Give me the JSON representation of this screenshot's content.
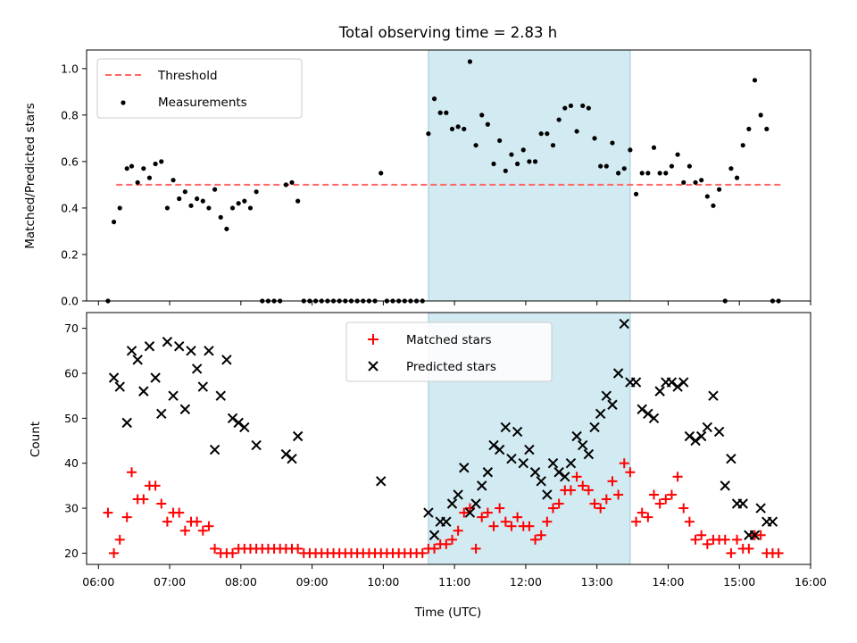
{
  "chart_data": [
    {
      "type": "scatter",
      "title": "Total observing time = 2.83 h",
      "xlabel": "",
      "ylabel": "Matched/Predicted stars",
      "ylim": [
        0,
        1.08
      ],
      "yticks": [
        "0.0",
        "0.2",
        "0.4",
        "0.6",
        "0.8",
        "1.0"
      ],
      "shaded_region": {
        "start": "10:38",
        "end": "13:28",
        "color": "#add8e6"
      },
      "legend_position": "upper-left",
      "series": [
        {
          "name": "Threshold",
          "kind": "dashed-line",
          "color": "#ff6666",
          "x": [
            "06:15",
            "15:35"
          ],
          "y": [
            0.5,
            0.5
          ]
        },
        {
          "name": "Measurements",
          "kind": "dots",
          "color": "#000000",
          "x": [
            "06:08",
            "06:13",
            "06:18",
            "06:24",
            "06:28",
            "06:33",
            "06:38",
            "06:43",
            "06:48",
            "06:53",
            "06:58",
            "07:03",
            "07:08",
            "07:13",
            "07:18",
            "07:23",
            "07:28",
            "07:33",
            "07:38",
            "07:43",
            "07:48",
            "07:53",
            "07:58",
            "08:03",
            "08:08",
            "08:13",
            "08:18",
            "08:23",
            "08:28",
            "08:33",
            "08:38",
            "08:43",
            "08:48",
            "08:53",
            "08:58",
            "09:03",
            "09:08",
            "09:13",
            "09:18",
            "09:23",
            "09:28",
            "09:33",
            "09:38",
            "09:43",
            "09:48",
            "09:53",
            "09:58",
            "10:03",
            "10:08",
            "10:13",
            "10:18",
            "10:23",
            "10:28",
            "10:33",
            "10:38",
            "10:43",
            "10:48",
            "10:53",
            "10:58",
            "11:03",
            "11:08",
            "11:13",
            "11:18",
            "11:23",
            "11:28",
            "11:33",
            "11:38",
            "11:43",
            "11:48",
            "11:53",
            "11:58",
            "12:03",
            "12:08",
            "12:13",
            "12:18",
            "12:23",
            "12:28",
            "12:33",
            "12:38",
            "12:43",
            "12:48",
            "12:53",
            "12:58",
            "13:03",
            "13:08",
            "13:13",
            "13:18",
            "13:23",
            "13:28",
            "13:33",
            "13:38",
            "13:43",
            "13:48",
            "13:53",
            "13:58",
            "14:03",
            "14:08",
            "14:13",
            "14:18",
            "14:23",
            "14:28",
            "14:33",
            "14:38",
            "14:43",
            "14:48",
            "14:53",
            "14:58",
            "15:03",
            "15:08",
            "15:13",
            "15:18",
            "15:23",
            "15:28",
            "15:33"
          ],
          "y": [
            0.0,
            0.34,
            0.4,
            0.57,
            0.58,
            0.51,
            0.57,
            0.53,
            0.59,
            0.6,
            0.4,
            0.52,
            0.44,
            0.47,
            0.41,
            0.44,
            0.43,
            0.4,
            0.48,
            0.36,
            0.31,
            0.4,
            0.42,
            0.43,
            0.4,
            0.47,
            0.0,
            0.0,
            0.0,
            0.0,
            0.5,
            0.51,
            0.43,
            0.0,
            0.0,
            0.0,
            0.0,
            0.0,
            0.0,
            0.0,
            0.0,
            0.0,
            0.0,
            0.0,
            0.0,
            0.0,
            0.55,
            0.0,
            0.0,
            0.0,
            0.0,
            0.0,
            0.0,
            0.0,
            0.72,
            0.87,
            0.81,
            0.81,
            0.74,
            0.75,
            0.74,
            1.03,
            0.67,
            0.8,
            0.76,
            0.59,
            0.69,
            0.56,
            0.63,
            0.59,
            0.65,
            0.6,
            0.6,
            0.72,
            0.72,
            0.67,
            0.78,
            0.83,
            0.84,
            0.73,
            0.84,
            0.83,
            0.7,
            0.58,
            0.58,
            0.68,
            0.55,
            0.57,
            0.65,
            0.46,
            0.55,
            0.55,
            0.66,
            0.55,
            0.55,
            0.58,
            0.63,
            0.51,
            0.58,
            0.51,
            0.52,
            0.45,
            0.41,
            0.48,
            0.0,
            0.57,
            0.53,
            0.67,
            0.74,
            0.95,
            0.8,
            0.74,
            0.0,
            0.0
          ]
        }
      ]
    },
    {
      "type": "scatter",
      "title": "",
      "xlabel": "Time (UTC)",
      "ylabel": "Count",
      "ylim": [
        17.5,
        73.5
      ],
      "yticks": [
        "20",
        "30",
        "40",
        "50",
        "60",
        "70"
      ],
      "xlim": [
        "05:50",
        "16:00"
      ],
      "xticks": [
        "06:00",
        "07:00",
        "08:00",
        "09:00",
        "10:00",
        "11:00",
        "12:00",
        "13:00",
        "14:00",
        "15:00",
        "16:00"
      ],
      "shaded_region": {
        "start": "10:38",
        "end": "13:28",
        "color": "#add8e6"
      },
      "legend_position": "upper-center",
      "series": [
        {
          "name": "Matched stars",
          "marker": "plus",
          "color": "#ff0000",
          "x": [
            "06:08",
            "06:13",
            "06:18",
            "06:24",
            "06:28",
            "06:33",
            "06:38",
            "06:43",
            "06:48",
            "06:53",
            "06:58",
            "07:03",
            "07:08",
            "07:13",
            "07:18",
            "07:23",
            "07:28",
            "07:33",
            "07:38",
            "07:43",
            "07:48",
            "07:53",
            "07:58",
            "08:03",
            "08:08",
            "08:13",
            "08:18",
            "08:23",
            "08:28",
            "08:33",
            "08:38",
            "08:43",
            "08:48",
            "08:53",
            "08:58",
            "09:03",
            "09:08",
            "09:13",
            "09:18",
            "09:23",
            "09:28",
            "09:33",
            "09:38",
            "09:43",
            "09:48",
            "09:53",
            "09:58",
            "10:03",
            "10:08",
            "10:13",
            "10:18",
            "10:23",
            "10:28",
            "10:33",
            "10:38",
            "10:43",
            "10:48",
            "10:53",
            "10:58",
            "11:03",
            "11:08",
            "11:13",
            "11:18",
            "11:23",
            "11:28",
            "11:33",
            "11:38",
            "11:43",
            "11:48",
            "11:53",
            "11:58",
            "12:03",
            "12:08",
            "12:13",
            "12:18",
            "12:23",
            "12:28",
            "12:33",
            "12:38",
            "12:43",
            "12:48",
            "12:53",
            "12:58",
            "13:03",
            "13:08",
            "13:13",
            "13:18",
            "13:23",
            "13:28",
            "13:33",
            "13:38",
            "13:43",
            "13:48",
            "13:53",
            "13:58",
            "14:03",
            "14:08",
            "14:13",
            "14:18",
            "14:23",
            "14:28",
            "14:33",
            "14:38",
            "14:43",
            "14:48",
            "14:53",
            "14:58",
            "15:03",
            "15:08",
            "15:13",
            "15:18",
            "15:23",
            "15:28",
            "15:33"
          ],
          "y": [
            29,
            20,
            23,
            28,
            38,
            32,
            32,
            35,
            35,
            31,
            27,
            29,
            29,
            25,
            27,
            27,
            25,
            26,
            21,
            20,
            20,
            20,
            21,
            21,
            21,
            21,
            21,
            21,
            21,
            21,
            21,
            21,
            21,
            20,
            20,
            20,
            20,
            20,
            20,
            20,
            20,
            20,
            20,
            20,
            20,
            20,
            20,
            20,
            20,
            20,
            20,
            20,
            20,
            20,
            21,
            21,
            22,
            22,
            23,
            25,
            29,
            30,
            21,
            28,
            29,
            26,
            30,
            27,
            26,
            28,
            26,
            26,
            23,
            24,
            27,
            30,
            31,
            34,
            34,
            37,
            35,
            34,
            31,
            30,
            32,
            36,
            33,
            40,
            38,
            27,
            29,
            28,
            33,
            31,
            32,
            33,
            37,
            30,
            27,
            23,
            24,
            22,
            23,
            23,
            23,
            20,
            23,
            21,
            21,
            24,
            24,
            20,
            20,
            20
          ],
          "note": ""
        },
        {
          "name": "Predicted stars",
          "marker": "x",
          "color": "#000000",
          "x": [
            "06:13",
            "06:18",
            "06:24",
            "06:28",
            "06:33",
            "06:38",
            "06:43",
            "06:48",
            "06:53",
            "06:58",
            "07:03",
            "07:08",
            "07:13",
            "07:18",
            "07:23",
            "07:28",
            "07:33",
            "07:38",
            "07:43",
            "07:48",
            "07:53",
            "07:58",
            "08:03",
            "08:13",
            "08:38",
            "08:43",
            "08:48",
            "09:58",
            "10:38",
            "10:43",
            "10:48",
            "10:53",
            "10:58",
            "11:03",
            "11:08",
            "11:13",
            "11:18",
            "11:23",
            "11:28",
            "11:33",
            "11:38",
            "11:43",
            "11:48",
            "11:53",
            "11:58",
            "12:03",
            "12:08",
            "12:13",
            "12:18",
            "12:23",
            "12:28",
            "12:33",
            "12:38",
            "12:43",
            "12:48",
            "12:53",
            "12:58",
            "13:03",
            "13:08",
            "13:13",
            "13:18",
            "13:23",
            "13:28",
            "13:33",
            "13:38",
            "13:43",
            "13:48",
            "13:53",
            "13:58",
            "14:03",
            "14:08",
            "14:13",
            "14:18",
            "14:23",
            "14:28",
            "14:33",
            "14:38",
            "14:43",
            "14:48",
            "14:53",
            "14:58",
            "15:03",
            "15:08",
            "15:13",
            "15:18",
            "15:23",
            "15:28"
          ],
          "y": [
            59,
            57,
            49,
            65,
            63,
            56,
            66,
            59,
            51,
            67,
            55,
            66,
            52,
            65,
            61,
            57,
            65,
            43,
            55,
            63,
            50,
            49,
            48,
            44,
            42,
            41,
            46,
            36,
            29,
            24,
            27,
            27,
            31,
            33,
            39,
            29,
            31,
            35,
            38,
            44,
            43,
            48,
            41,
            47,
            40,
            43,
            38,
            36,
            33,
            40,
            38,
            37,
            40,
            46,
            44,
            42,
            48,
            51,
            55,
            53,
            60,
            71,
            58,
            58,
            52,
            51,
            50,
            56,
            58,
            58,
            57,
            58,
            46,
            45,
            46,
            48,
            55,
            47,
            35,
            41,
            31,
            31,
            24,
            24,
            30,
            27,
            27
          ],
          "note": ""
        }
      ]
    }
  ]
}
